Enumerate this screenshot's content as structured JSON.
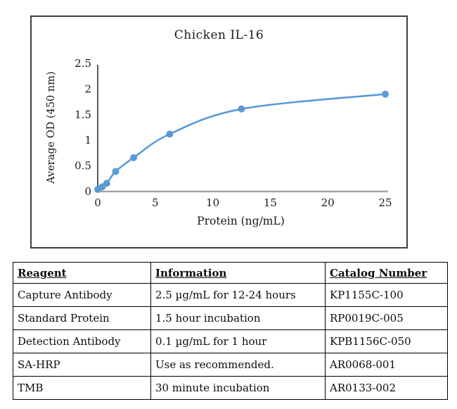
{
  "chart_data": {
    "type": "line",
    "title": "Chicken IL-16",
    "xlabel": "Protein (ng/mL)",
    "ylabel": "Average OD (450 nm)",
    "x": [
      0,
      0.39,
      0.78,
      1.56,
      3.125,
      6.25,
      12.5,
      25
    ],
    "y": [
      0.04,
      0.09,
      0.16,
      0.39,
      0.66,
      1.12,
      1.61,
      1.9
    ],
    "xlim": [
      0,
      25
    ],
    "ylim": [
      0,
      2.5
    ],
    "x_ticks": [
      "0",
      "5",
      "10",
      "15",
      "20",
      "25"
    ],
    "x_tick_values": [
      0,
      5,
      10,
      15,
      20,
      25
    ],
    "y_ticks": [
      "0",
      "0.5",
      "1",
      "1.5",
      "2",
      "2.5"
    ],
    "y_tick_values": [
      0,
      0.5,
      1,
      1.5,
      2,
      2.5
    ],
    "grid": false,
    "legend": "none",
    "series_color": "#5b9bd5",
    "x_axis_color": "#a3a3a3",
    "y_axis_color": "#595959"
  },
  "table": {
    "columns": [
      "Reagent",
      "Information",
      "Catalog Number"
    ],
    "rows": [
      [
        "Capture Antibody",
        "2.5 µg/mL for 12-24 hours",
        "KP1155C-100"
      ],
      [
        "Standard Protein",
        "1.5 hour incubation",
        "RP0019C-005"
      ],
      [
        "Detection Antibody",
        "0.1 µg/mL for 1 hour",
        "KPB1156C-050"
      ],
      [
        "SA-HRP",
        "Use as recommended.",
        "AR0068-001"
      ],
      [
        "TMB",
        "30 minute incubation",
        "AR0133-002"
      ]
    ]
  }
}
